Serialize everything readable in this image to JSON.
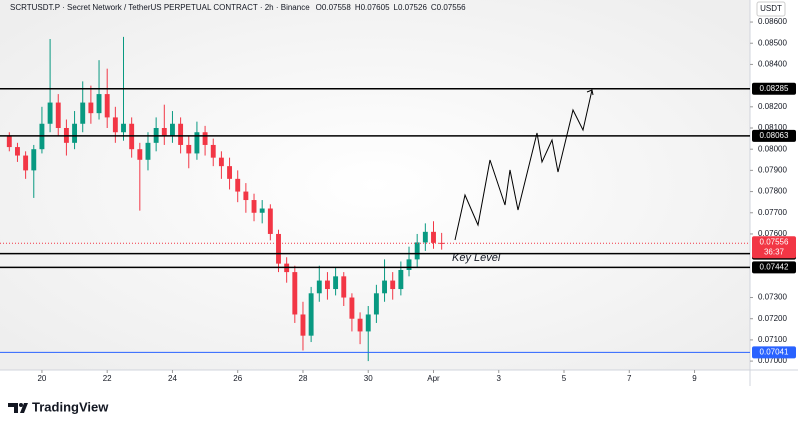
{
  "chart_data": {
    "type": "candlestick",
    "title": "SCRTUSDT.P · Secret Network / TetherUS PERPETUAL CONTRACT · 2h · Binance",
    "header_ohlc": [
      {
        "label": "O",
        "value": 0.07558
      },
      {
        "label": "H",
        "value": 0.07605
      },
      {
        "label": "L",
        "value": 0.07526
      },
      {
        "label": "C",
        "value": 0.07556
      }
    ],
    "currency": "USDT",
    "annotation": "Key Level",
    "brand": "TradingView",
    "up_color": "#089981",
    "down_color": "#f23645",
    "x": [
      19.0,
      19.25,
      19.5,
      19.75,
      20.0,
      20.25,
      20.5,
      20.75,
      21.0,
      21.25,
      21.5,
      21.75,
      22.0,
      22.25,
      22.5,
      22.75,
      23.0,
      23.25,
      23.5,
      23.75,
      24.0,
      24.25,
      24.5,
      24.75,
      25.0,
      25.25,
      25.5,
      25.75,
      26.0,
      26.25,
      26.5,
      26.75,
      27.0,
      27.25,
      27.5,
      27.75,
      28.0,
      28.25,
      28.5,
      28.75,
      29.0,
      29.25,
      29.5,
      29.75,
      30.0,
      30.25,
      30.5,
      30.75,
      31.0,
      31.25,
      31.5,
      31.75,
      32.0,
      32.25
    ],
    "open": [
      0.0806,
      0.0801,
      0.0797,
      0.079,
      0.08,
      0.0812,
      0.0822,
      0.081,
      0.0803,
      0.0812,
      0.0822,
      0.0817,
      0.0826,
      0.0815,
      0.0808,
      0.0812,
      0.08,
      0.0795,
      0.0803,
      0.081,
      0.0806,
      0.0812,
      0.0802,
      0.0798,
      0.0808,
      0.0802,
      0.0796,
      0.0792,
      0.0786,
      0.078,
      0.0776,
      0.077,
      0.0772,
      0.076,
      0.0746,
      0.0742,
      0.0722,
      0.0712,
      0.0732,
      0.0738,
      0.0734,
      0.074,
      0.073,
      0.072,
      0.0714,
      0.0722,
      0.0732,
      0.0738,
      0.0734,
      0.0743,
      0.0748,
      0.0756,
      0.0761,
      0.07558
    ],
    "high": [
      0.0808,
      0.0803,
      0.0799,
      0.0802,
      0.082,
      0.0852,
      0.0826,
      0.0814,
      0.0818,
      0.0832,
      0.083,
      0.0842,
      0.0838,
      0.082,
      0.0853,
      0.0815,
      0.0803,
      0.0808,
      0.0815,
      0.0821,
      0.0818,
      0.0815,
      0.0806,
      0.0813,
      0.0811,
      0.0805,
      0.0799,
      0.0796,
      0.079,
      0.0784,
      0.0779,
      0.0776,
      0.0774,
      0.0762,
      0.0749,
      0.0745,
      0.0728,
      0.0735,
      0.0745,
      0.0742,
      0.0744,
      0.0742,
      0.0732,
      0.0723,
      0.0726,
      0.0736,
      0.0748,
      0.0742,
      0.0747,
      0.0754,
      0.076,
      0.0765,
      0.0766,
      0.07605
    ],
    "low": [
      0.0799,
      0.0794,
      0.0786,
      0.0777,
      0.0798,
      0.0808,
      0.0806,
      0.0797,
      0.08,
      0.0808,
      0.0812,
      0.0814,
      0.081,
      0.0803,
      0.0804,
      0.0796,
      0.0771,
      0.079,
      0.0799,
      0.0802,
      0.0803,
      0.0798,
      0.0791,
      0.0795,
      0.0797,
      0.0792,
      0.0786,
      0.0781,
      0.0775,
      0.077,
      0.0766,
      0.0765,
      0.0757,
      0.0742,
      0.0737,
      0.0718,
      0.0705,
      0.0709,
      0.0728,
      0.0729,
      0.0731,
      0.0726,
      0.0714,
      0.0708,
      0.07,
      0.0718,
      0.0728,
      0.0729,
      0.0731,
      0.074,
      0.0744,
      0.0752,
      0.0753,
      0.07526
    ],
    "close": [
      0.0801,
      0.0797,
      0.079,
      0.08,
      0.0812,
      0.0822,
      0.081,
      0.0803,
      0.0812,
      0.0822,
      0.0817,
      0.0826,
      0.0815,
      0.0808,
      0.0812,
      0.08,
      0.0795,
      0.0803,
      0.081,
      0.0806,
      0.0812,
      0.0802,
      0.0798,
      0.0808,
      0.0802,
      0.0796,
      0.0792,
      0.0786,
      0.078,
      0.0776,
      0.077,
      0.0772,
      0.076,
      0.0746,
      0.0742,
      0.0722,
      0.0712,
      0.0732,
      0.0738,
      0.0734,
      0.074,
      0.073,
      0.072,
      0.0714,
      0.0722,
      0.0732,
      0.0738,
      0.0734,
      0.0743,
      0.0748,
      0.0756,
      0.0761,
      0.07558,
      0.07556
    ],
    "xlim": [
      18.96,
      41.7
    ],
    "xticks": [
      20,
      22,
      24,
      26,
      28,
      30,
      {
        "value": 32,
        "label": "Apr"
      },
      {
        "value": 34,
        "label": "3"
      },
      {
        "value": 36,
        "label": "5"
      },
      {
        "value": 38,
        "label": "7"
      },
      {
        "value": 40,
        "label": "9"
      }
    ],
    "ylim": [
      0.06958,
      0.08704
    ],
    "yticks": [
      {
        "value": 0.086,
        "label": "0.08600"
      },
      {
        "value": 0.085,
        "label": "0.08500"
      },
      {
        "value": 0.084,
        "label": "0.08400"
      },
      {
        "value": 0.082,
        "label": "0.08200"
      },
      {
        "value": 0.081,
        "label": "0.08100"
      },
      {
        "value": 0.08,
        "label": "0.08000"
      },
      {
        "value": 0.079,
        "label": "0.07900"
      },
      {
        "value": 0.078,
        "label": "0.07800"
      },
      {
        "value": 0.077,
        "label": "0.07700"
      },
      {
        "value": 0.076,
        "label": "0.07600"
      },
      {
        "value": 0.073,
        "label": "0.07300"
      },
      {
        "value": 0.072,
        "label": "0.07200"
      },
      {
        "value": 0.071,
        "label": "0.07100"
      },
      {
        "value": 0.07,
        "label": "0.07000"
      }
    ],
    "price_lines": [
      {
        "value": 0.08285,
        "color": "#000000"
      },
      {
        "value": 0.08063,
        "color": "#000000"
      },
      {
        "value": 0.07507,
        "color": "#000000"
      },
      {
        "value": 0.07442,
        "color": "#000000"
      },
      {
        "value": 0.07041,
        "color": "#2962ff"
      }
    ],
    "last_price": 0.07556,
    "last_price_color": "#f23645",
    "countdown": "36:37"
  }
}
